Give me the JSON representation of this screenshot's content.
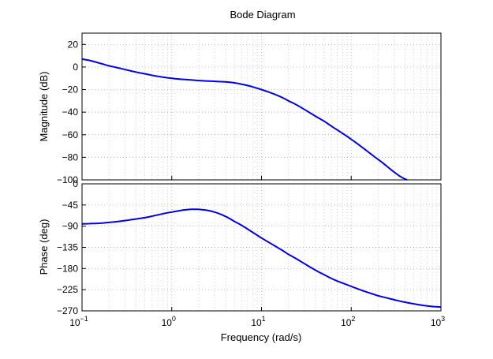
{
  "chart_data": {
    "type": "line",
    "title": "Bode Diagram",
    "xlabel": "Frequency  (rad/s)",
    "xscale": "log",
    "xlim": [
      0.1,
      1000
    ],
    "x_ticks": [
      {
        "base": "10",
        "exp": "−1"
      },
      {
        "base": "10",
        "exp": "0"
      },
      {
        "base": "10",
        "exp": "1"
      },
      {
        "base": "10",
        "exp": "2"
      },
      {
        "base": "10",
        "exp": "3"
      }
    ],
    "grid": true,
    "line_color": "#0000ee",
    "panels": [
      {
        "name": "magnitude",
        "ylabel": "Magnitude (dB)",
        "ylim": [
          -100,
          30
        ],
        "y_ticks": [
          "20",
          "0",
          "−20",
          "−40",
          "−60",
          "−80",
          "−100"
        ],
        "x": [
          0.1,
          0.2,
          0.5,
          1,
          2,
          5,
          10,
          20,
          50,
          100,
          200,
          420
        ],
        "y": [
          7,
          1,
          -6,
          -10,
          -12,
          -14,
          -20,
          -30,
          -48,
          -64,
          -82,
          -100
        ]
      },
      {
        "name": "phase",
        "ylabel": "Phase (deg)",
        "ylim": [
          -270,
          0
        ],
        "y_ticks": [
          "0",
          "−45",
          "−90",
          "−135",
          "−180",
          "−225",
          "−270"
        ],
        "x": [
          0.1,
          0.2,
          0.5,
          1,
          1.78,
          3,
          5,
          10,
          20,
          50,
          100,
          200,
          500,
          1000
        ],
        "y": [
          -85,
          -82,
          -72,
          -60,
          -54,
          -60,
          -80,
          -115,
          -150,
          -193,
          -218,
          -238,
          -255,
          -262
        ]
      }
    ]
  }
}
